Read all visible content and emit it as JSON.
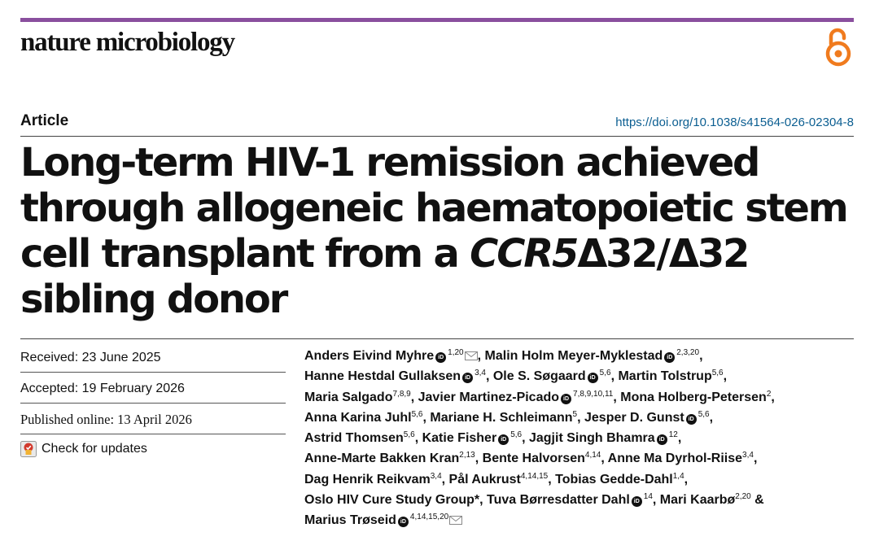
{
  "journal": {
    "name": "nature microbiology",
    "open_access_icon": "open-access-lock-icon"
  },
  "article": {
    "type": "Article",
    "doi": "https://doi.org/10.1038/s41564-026-02304-8",
    "title_part1": "Long-term HIV-1 remission achieved through allogeneic haematopoietic stem cell transplant from a ",
    "title_gene": "CCR5",
    "title_part2": "Δ32/Δ32 sibling donor"
  },
  "dates": {
    "received": "Received: 23 June 2025",
    "accepted": "Accepted: 19 February 2026",
    "published": "Published online: 13 April 2026"
  },
  "updates": {
    "label": "Check for updates",
    "icon": "check-for-updates-icon"
  },
  "authors": [
    {
      "name": "Anders Eivind Myhre",
      "orcid": true,
      "aff": "1,20",
      "mail": true,
      "sep": ", "
    },
    {
      "name": "Malin Holm Meyer-Myklestad",
      "orcid": true,
      "aff": "2,3,20",
      "sep": ","
    },
    {
      "name": "Hanne Hestdal Gullaksen",
      "orcid": true,
      "aff": "3,4",
      "sep": ", "
    },
    {
      "name": "Ole S. Søgaard",
      "orcid": true,
      "aff": "5,6",
      "sep": ", "
    },
    {
      "name": "Martin Tolstrup",
      "aff": "5,6",
      "sep": ","
    },
    {
      "name": "Maria Salgado",
      "aff": "7,8,9",
      "sep": ", "
    },
    {
      "name": "Javier Martinez-Picado",
      "orcid": true,
      "aff": "7,8,9,10,11",
      "sep": ", "
    },
    {
      "name": "Mona Holberg-Petersen",
      "aff": "2",
      "sep": ","
    },
    {
      "name": "Anna Karina Juhl",
      "aff": "5,6",
      "sep": ", "
    },
    {
      "name": "Mariane H. Schleimann",
      "aff": "5",
      "sep": ", "
    },
    {
      "name": "Jesper D. Gunst",
      "orcid": true,
      "aff": "5,6",
      "sep": ","
    },
    {
      "name": "Astrid Thomsen",
      "aff": "5,6",
      "sep": ", "
    },
    {
      "name": "Katie Fisher",
      "orcid": true,
      "aff": "5,6",
      "sep": ", "
    },
    {
      "name": "Jagjit Singh Bhamra",
      "orcid": true,
      "aff": "12",
      "sep": ","
    },
    {
      "name": "Anne-Marte Bakken Kran",
      "aff": "2,13",
      "sep": ", "
    },
    {
      "name": "Bente Halvorsen",
      "aff": "4,14",
      "sep": ", "
    },
    {
      "name": "Anne Ma Dyrhol-Riise",
      "aff": "3,4",
      "sep": ","
    },
    {
      "name": "Dag Henrik Reikvam",
      "aff": "3,4",
      "sep": ", "
    },
    {
      "name": "Pål Aukrust",
      "aff": "4,14,15",
      "sep": ", "
    },
    {
      "name": "Tobias Gedde-Dahl",
      "aff": "1,4",
      "sep": ", "
    },
    {
      "name": "Oslo HIV Cure Study Group*",
      "sep": ", "
    },
    {
      "name": "Tuva Børresdatter Dahl",
      "orcid": true,
      "aff": "14",
      "sep": ", "
    },
    {
      "name": "Mari Kaarbø",
      "aff": "2,20",
      "sep": " & "
    },
    {
      "name": "Marius Trøseid",
      "orcid": true,
      "aff": "4,14,15,20",
      "mail": true,
      "sep": ""
    }
  ],
  "author_line_breaks": [
    2,
    5,
    8,
    11,
    14,
    17,
    20,
    23,
    24
  ]
}
